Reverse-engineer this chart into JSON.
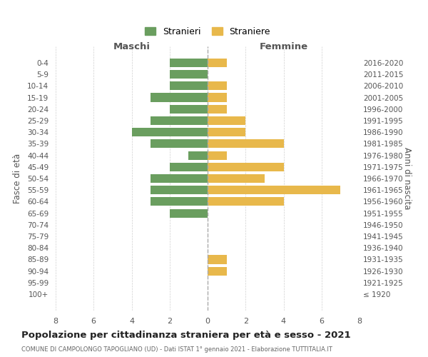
{
  "age_groups": [
    "0-4",
    "5-9",
    "10-14",
    "15-19",
    "20-24",
    "25-29",
    "30-34",
    "35-39",
    "40-44",
    "45-49",
    "50-54",
    "55-59",
    "60-64",
    "65-69",
    "70-74",
    "75-79",
    "80-84",
    "85-89",
    "90-94",
    "95-99",
    "100+"
  ],
  "birth_years": [
    "2016-2020",
    "2011-2015",
    "2006-2010",
    "2001-2005",
    "1996-2000",
    "1991-1995",
    "1986-1990",
    "1981-1985",
    "1976-1980",
    "1971-1975",
    "1966-1970",
    "1961-1965",
    "1956-1960",
    "1951-1955",
    "1946-1950",
    "1941-1945",
    "1936-1940",
    "1931-1935",
    "1926-1930",
    "1921-1925",
    "≤ 1920"
  ],
  "maschi": [
    2,
    2,
    2,
    3,
    2,
    3,
    4,
    3,
    1,
    2,
    3,
    3,
    3,
    2,
    0,
    0,
    0,
    0,
    0,
    0,
    0
  ],
  "femmine": [
    1,
    0,
    1,
    1,
    1,
    2,
    2,
    4,
    1,
    4,
    3,
    7,
    4,
    0,
    0,
    0,
    0,
    1,
    1,
    0,
    0
  ],
  "color_maschi": "#6a9e5f",
  "color_femmine": "#e8b84b",
  "title": "Popolazione per cittadinanza straniera per età e sesso - 2021",
  "subtitle": "COMUNE DI CAMPOLONGO TAPOGLIANO (UD) - Dati ISTAT 1° gennaio 2021 - Elaborazione TUTTITALIA.IT",
  "xlabel_left": "Maschi",
  "xlabel_right": "Femmine",
  "ylabel": "Fasce di età",
  "ylabel_right": "Anni di nascita",
  "legend_maschi": "Stranieri",
  "legend_femmine": "Straniere",
  "xlim": 8,
  "background_color": "#ffffff",
  "grid_color": "#d0d0d0"
}
